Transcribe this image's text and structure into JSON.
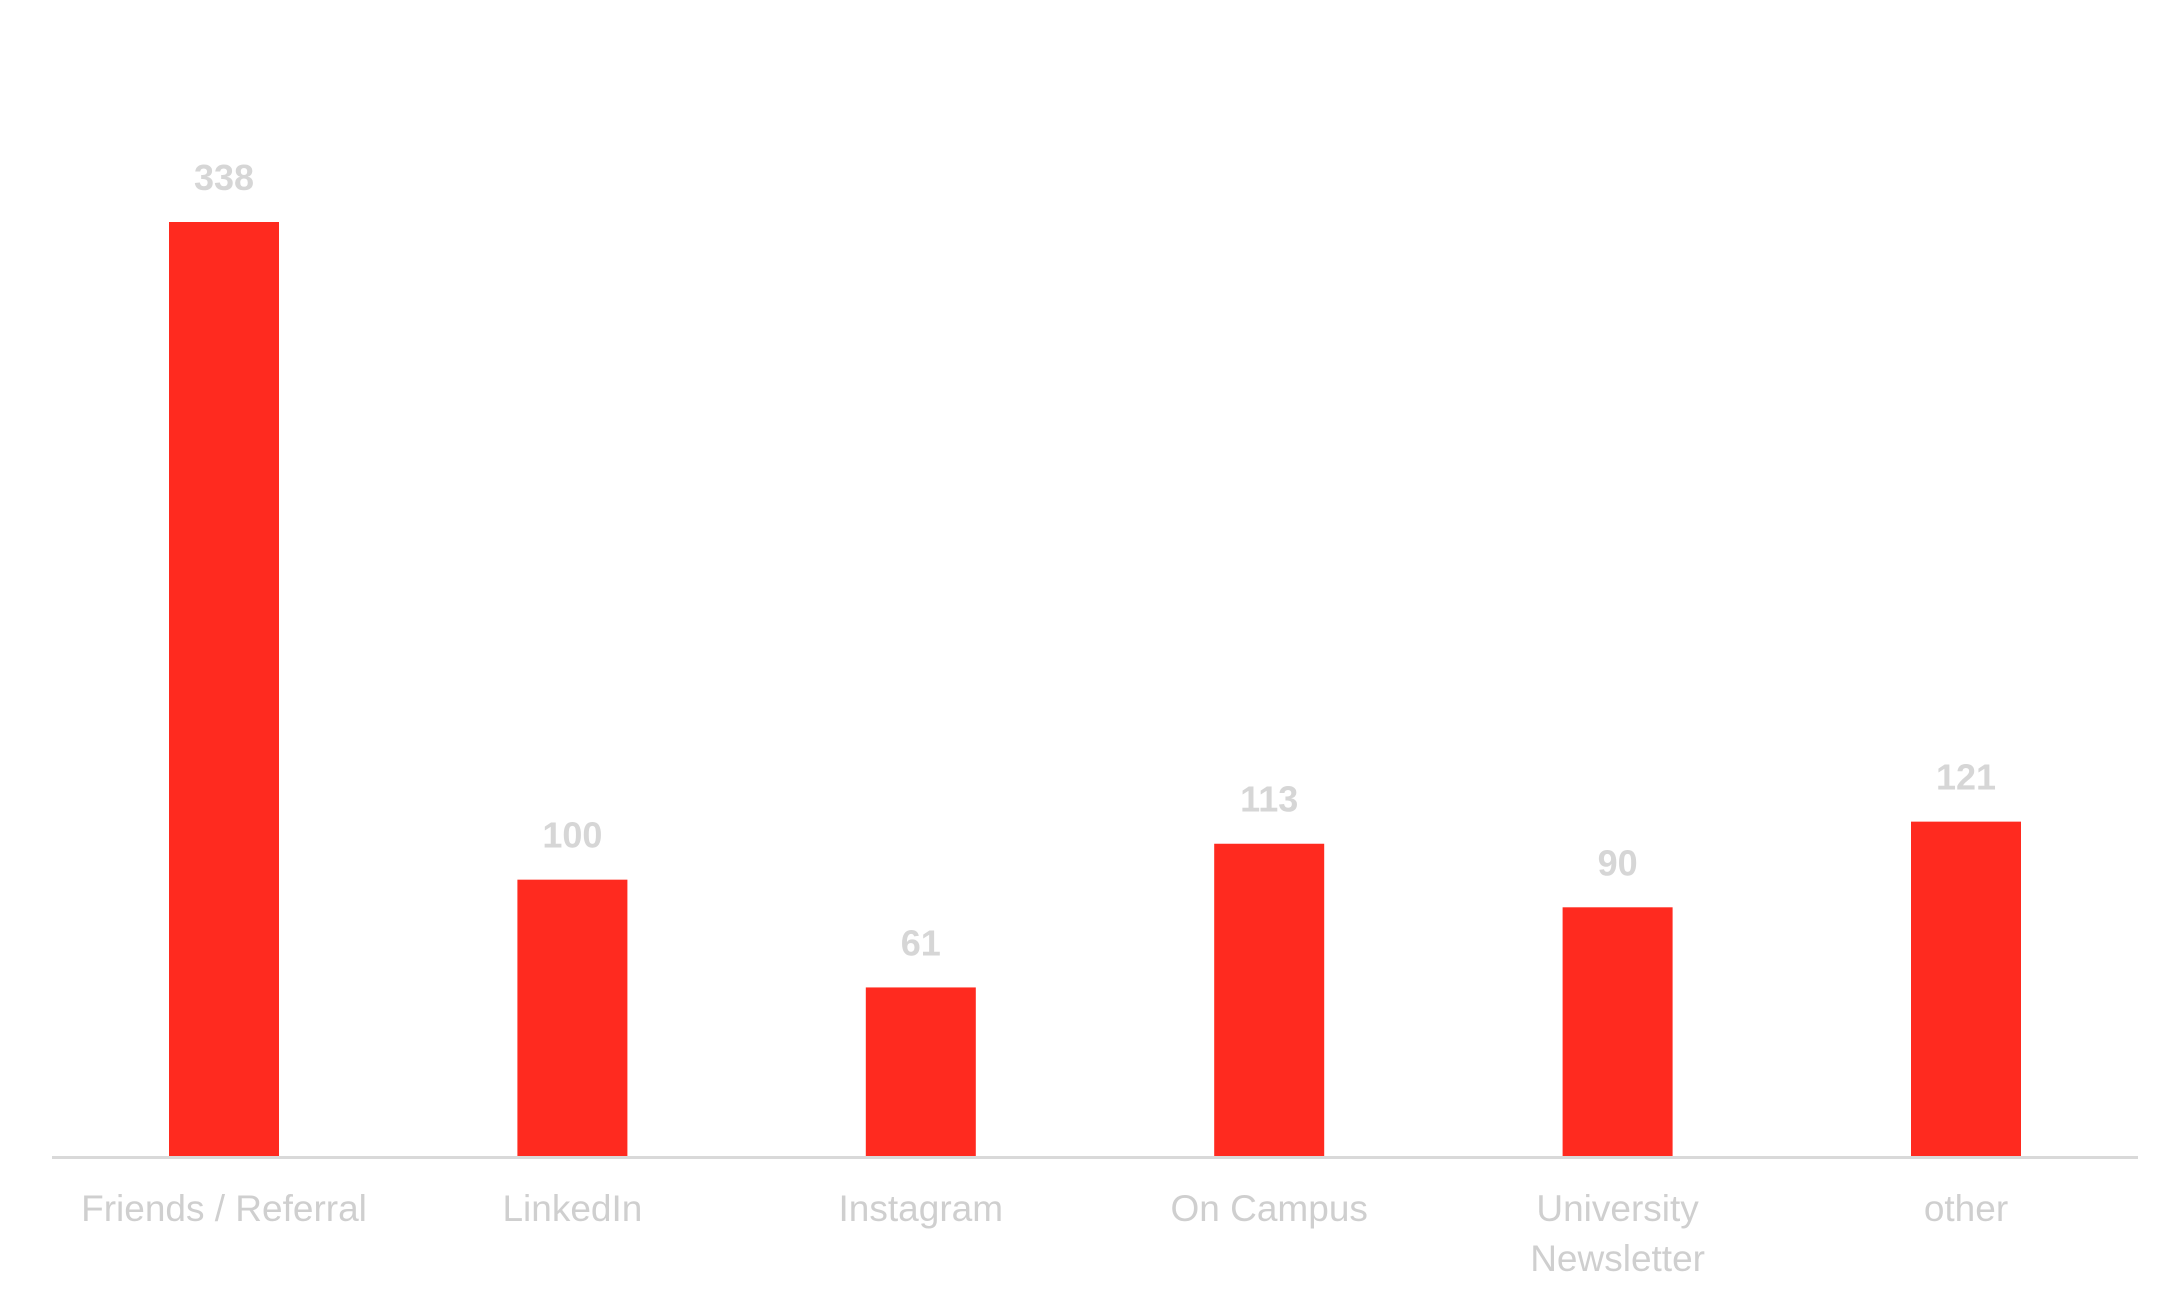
{
  "chart_data": {
    "type": "bar",
    "title": "",
    "xlabel": "",
    "ylabel": "",
    "categories": [
      "Friends / Referral",
      "LinkedIn",
      "Instagram",
      "On Campus",
      "University Newsletter",
      "other"
    ],
    "category_lines": [
      [
        "Friends / Referral"
      ],
      [
        "LinkedIn"
      ],
      [
        "Instagram"
      ],
      [
        "On Campus"
      ],
      [
        "University",
        "Newsletter"
      ],
      [
        "other"
      ]
    ],
    "values": [
      338,
      100,
      61,
      113,
      90,
      121
    ],
    "ylim": [
      0,
      338
    ],
    "grid": false,
    "legend": "none",
    "data_labels": true
  },
  "colors": {
    "bar": "#ff2a1f",
    "data_label": "#d6d6d6",
    "axis_label": "#cfcfcf",
    "axis_line": "#d9d9d9",
    "background": "#ffffff"
  }
}
